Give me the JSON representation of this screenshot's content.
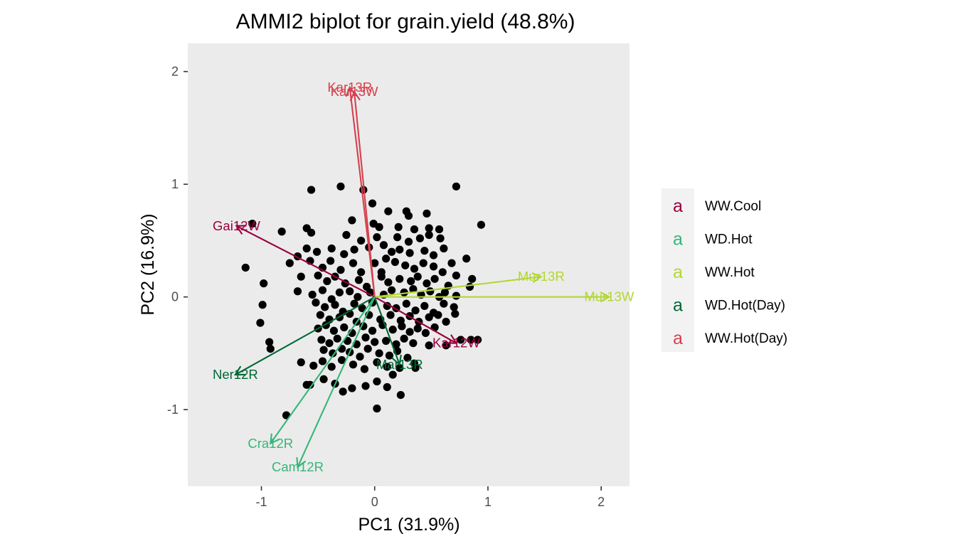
{
  "chart_data": {
    "type": "scatter",
    "title": "AMMI2 biplot for grain.yield (48.8%)",
    "xlabel": "PC1 (31.9%)",
    "ylabel": "PC2 (16.9%)",
    "xlim": [
      -1.65,
      2.25
    ],
    "ylim": [
      -1.68,
      2.25
    ],
    "xticks": [
      -1,
      0,
      1,
      2
    ],
    "yticks": [
      -1,
      0,
      1,
      2
    ],
    "xtick_labels": [
      "-1",
      "0",
      "1",
      "2"
    ],
    "ytick_labels": [
      "-1",
      "0",
      "1",
      "2"
    ],
    "grid": false,
    "panel_background": "#ebebeb",
    "legend_position": "right",
    "groups": [
      {
        "name": "WW.Cool",
        "color": "#99003f"
      },
      {
        "name": "WD.Hot",
        "color": "#35b779"
      },
      {
        "name": "WW.Hot",
        "color": "#b2d732"
      },
      {
        "name": "WD.Hot(Day)",
        "color": "#006837"
      },
      {
        "name": "WW.Hot(Day)",
        "color": "#d6404e"
      }
    ],
    "environments": [
      {
        "label": "Kar13R",
        "group": "WW.Hot(Day)",
        "pc1": -0.22,
        "pc2": 1.86
      },
      {
        "label": "Kar13W",
        "group": "WW.Hot(Day)",
        "pc1": -0.18,
        "pc2": 1.82
      },
      {
        "label": "Gai12W",
        "group": "WW.Cool",
        "pc1": -1.22,
        "pc2": 0.63
      },
      {
        "label": "Kar12W",
        "group": "WW.Cool",
        "pc1": 0.72,
        "pc2": -0.41
      },
      {
        "label": "Mur13R",
        "group": "WW.Hot",
        "pc1": 1.47,
        "pc2": 0.18
      },
      {
        "label": "Mur13W",
        "group": "WW.Hot",
        "pc1": 2.07,
        "pc2": 0.0
      },
      {
        "label": "Ner12R",
        "group": "WD.Hot(Day)",
        "pc1": -1.23,
        "pc2": -0.69
      },
      {
        "label": "Mar13R",
        "group": "WD.Hot(Day)",
        "pc1": 0.22,
        "pc2": -0.6
      },
      {
        "label": "Cra12R",
        "group": "WD.Hot",
        "pc1": -0.92,
        "pc2": -1.3
      },
      {
        "label": "Cam12R",
        "group": "WD.Hot",
        "pc1": -0.68,
        "pc2": -1.51
      }
    ],
    "genotype_points": [
      [
        -0.56,
        0.95
      ],
      [
        -0.3,
        0.98
      ],
      [
        -0.1,
        0.95
      ],
      [
        0.72,
        0.98
      ],
      [
        -1.08,
        0.65
      ],
      [
        0.94,
        0.64
      ],
      [
        -0.2,
        0.68
      ],
      [
        -0.02,
        0.83
      ],
      [
        0.12,
        0.76
      ],
      [
        0.28,
        0.76
      ],
      [
        0.3,
        0.72
      ],
      [
        0.46,
        0.74
      ],
      [
        -0.82,
        0.58
      ],
      [
        -0.6,
        0.61
      ],
      [
        -0.56,
        0.57
      ],
      [
        -0.01,
        0.65
      ],
      [
        0.04,
        0.62
      ],
      [
        0.21,
        0.62
      ],
      [
        0.35,
        0.6
      ],
      [
        0.48,
        0.61
      ],
      [
        0.57,
        0.6
      ],
      [
        -0.25,
        0.55
      ],
      [
        -0.12,
        0.5
      ],
      [
        0.02,
        0.53
      ],
      [
        0.2,
        0.53
      ],
      [
        0.3,
        0.49
      ],
      [
        0.4,
        0.52
      ],
      [
        0.48,
        0.55
      ],
      [
        0.58,
        0.52
      ],
      [
        -0.6,
        0.43
      ],
      [
        -0.51,
        0.4
      ],
      [
        -0.38,
        0.43
      ],
      [
        -0.27,
        0.38
      ],
      [
        -0.18,
        0.42
      ],
      [
        -0.05,
        0.44
      ],
      [
        0.08,
        0.46
      ],
      [
        0.15,
        0.4
      ],
      [
        0.22,
        0.42
      ],
      [
        0.31,
        0.39
      ],
      [
        0.44,
        0.41
      ],
      [
        0.52,
        0.37
      ],
      [
        0.61,
        0.43
      ],
      [
        -1.14,
        0.26
      ],
      [
        -0.75,
        0.3
      ],
      [
        -0.68,
        0.36
      ],
      [
        -0.57,
        0.32
      ],
      [
        -0.46,
        0.26
      ],
      [
        -0.39,
        0.32
      ],
      [
        -0.3,
        0.24
      ],
      [
        -0.19,
        0.3
      ],
      [
        -0.12,
        0.22
      ],
      [
        0.0,
        0.3
      ],
      [
        0.1,
        0.34
      ],
      [
        0.18,
        0.31
      ],
      [
        0.27,
        0.28
      ],
      [
        0.35,
        0.25
      ],
      [
        0.43,
        0.3
      ],
      [
        0.52,
        0.27
      ],
      [
        0.6,
        0.22
      ],
      [
        0.68,
        0.3
      ],
      [
        0.81,
        0.34
      ],
      [
        -0.98,
        0.12
      ],
      [
        -0.65,
        0.18
      ],
      [
        -0.5,
        0.19
      ],
      [
        -0.42,
        0.14
      ],
      [
        -0.35,
        0.18
      ],
      [
        -0.26,
        0.12
      ],
      [
        -0.14,
        0.15
      ],
      [
        -0.07,
        0.09
      ],
      [
        0.06,
        0.18
      ],
      [
        0.12,
        0.13
      ],
      [
        0.22,
        0.16
      ],
      [
        0.32,
        0.14
      ],
      [
        0.38,
        0.18
      ],
      [
        0.46,
        0.12
      ],
      [
        0.53,
        0.16
      ],
      [
        0.65,
        0.1
      ],
      [
        0.72,
        0.19
      ],
      [
        0.86,
        0.16
      ],
      [
        -0.68,
        0.05
      ],
      [
        -0.55,
        0.02
      ],
      [
        -0.46,
        0.06
      ],
      [
        -0.38,
        -0.02
      ],
      [
        -0.31,
        0.04
      ],
      [
        -0.22,
        0.05
      ],
      [
        -0.15,
        0.0
      ],
      [
        -0.04,
        0.04
      ],
      [
        0.08,
        0.02
      ],
      [
        0.15,
        0.06
      ],
      [
        0.26,
        0.04
      ],
      [
        0.34,
        0.07
      ],
      [
        0.41,
        0.02
      ],
      [
        0.49,
        0.05
      ],
      [
        0.57,
        0.0
      ],
      [
        0.62,
        0.04
      ],
      [
        0.72,
        0.01
      ],
      [
        0.84,
        0.09
      ],
      [
        -0.99,
        -0.07
      ],
      [
        -0.52,
        -0.05
      ],
      [
        -0.44,
        -0.09
      ],
      [
        -0.35,
        -0.07
      ],
      [
        -0.28,
        -0.13
      ],
      [
        -0.18,
        -0.06
      ],
      [
        -0.11,
        -0.1
      ],
      [
        -0.02,
        -0.05
      ],
      [
        0.11,
        -0.08
      ],
      [
        0.19,
        -0.1
      ],
      [
        0.28,
        -0.06
      ],
      [
        0.36,
        -0.12
      ],
      [
        0.44,
        -0.08
      ],
      [
        0.52,
        -0.14
      ],
      [
        0.61,
        -0.06
      ],
      [
        0.7,
        -0.09
      ],
      [
        -0.48,
        -0.16
      ],
      [
        -0.4,
        -0.2
      ],
      [
        -0.31,
        -0.18
      ],
      [
        -0.22,
        -0.15
      ],
      [
        -0.16,
        -0.22
      ],
      [
        -0.05,
        -0.16
      ],
      [
        0.05,
        -0.2
      ],
      [
        0.14,
        -0.16
      ],
      [
        0.23,
        -0.21
      ],
      [
        0.31,
        -0.17
      ],
      [
        0.39,
        -0.22
      ],
      [
        0.48,
        -0.18
      ],
      [
        0.56,
        -0.16
      ],
      [
        0.63,
        -0.22
      ],
      [
        0.71,
        -0.15
      ],
      [
        -1.01,
        -0.23
      ],
      [
        -0.5,
        -0.28
      ],
      [
        -0.43,
        -0.25
      ],
      [
        -0.36,
        -0.3
      ],
      [
        -0.27,
        -0.27
      ],
      [
        -0.2,
        -0.32
      ],
      [
        -0.1,
        -0.26
      ],
      [
        -0.02,
        -0.3
      ],
      [
        0.07,
        -0.25
      ],
      [
        0.16,
        -0.29
      ],
      [
        0.24,
        -0.26
      ],
      [
        0.31,
        -0.31
      ],
      [
        0.38,
        -0.28
      ],
      [
        0.45,
        -0.32
      ],
      [
        0.53,
        -0.27
      ],
      [
        -0.47,
        -0.38
      ],
      [
        -0.4,
        -0.41
      ],
      [
        -0.33,
        -0.37
      ],
      [
        -0.24,
        -0.39
      ],
      [
        -0.16,
        -0.42
      ],
      [
        -0.08,
        -0.36
      ],
      [
        0.0,
        -0.4
      ],
      [
        0.1,
        -0.39
      ],
      [
        0.19,
        -0.42
      ],
      [
        0.26,
        -0.37
      ],
      [
        0.34,
        -0.41
      ],
      [
        0.48,
        -0.43
      ],
      [
        0.76,
        -0.38
      ],
      [
        0.85,
        -0.38
      ],
      [
        0.91,
        -0.38
      ],
      [
        -0.93,
        -0.4
      ],
      [
        -0.92,
        -0.46
      ],
      [
        -0.45,
        -0.47
      ],
      [
        -0.37,
        -0.5
      ],
      [
        -0.29,
        -0.46
      ],
      [
        -0.22,
        -0.49
      ],
      [
        -0.13,
        -0.53
      ],
      [
        -0.06,
        -0.46
      ],
      [
        0.04,
        -0.5
      ],
      [
        0.13,
        -0.52
      ],
      [
        0.2,
        -0.48
      ],
      [
        0.29,
        -0.54
      ],
      [
        0.35,
        -0.59
      ],
      [
        0.63,
        -0.43
      ],
      [
        -0.65,
        -0.58
      ],
      [
        -0.54,
        -0.61
      ],
      [
        -0.46,
        -0.57
      ],
      [
        -0.38,
        -0.62
      ],
      [
        -0.29,
        -0.56
      ],
      [
        -0.19,
        -0.6
      ],
      [
        -0.09,
        -0.64
      ],
      [
        0.02,
        -0.58
      ],
      [
        0.11,
        -0.62
      ],
      [
        0.22,
        -0.63
      ],
      [
        0.36,
        -0.63
      ],
      [
        -0.57,
        -0.78
      ],
      [
        -0.6,
        -0.78
      ],
      [
        -0.45,
        -0.73
      ],
      [
        -0.35,
        -0.77
      ],
      [
        -0.28,
        -0.84
      ],
      [
        -0.2,
        -0.81
      ],
      [
        -0.08,
        -0.79
      ],
      [
        0.02,
        -0.75
      ],
      [
        0.11,
        -0.8
      ],
      [
        0.16,
        -0.69
      ],
      [
        0.23,
        -0.87
      ],
      [
        -0.78,
        -1.05
      ],
      [
        0.02,
        -0.99
      ],
      [
        0.06,
        0.22
      ]
    ]
  }
}
